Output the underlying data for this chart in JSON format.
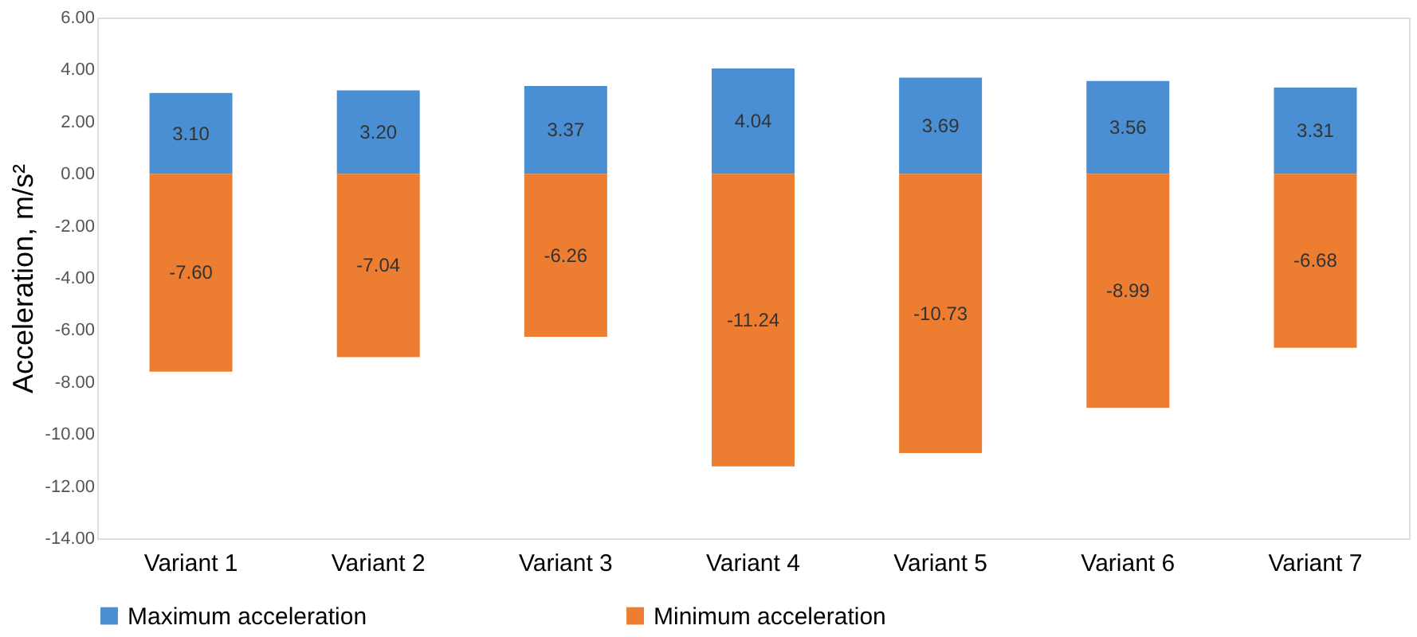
{
  "chart_data": {
    "type": "bar",
    "stacked": true,
    "ylabel": "Acceleration, m/s²",
    "categories": [
      "Variant 1",
      "Variant 2",
      "Variant 3",
      "Variant 4",
      "Variant 5",
      "Variant 6",
      "Variant 7"
    ],
    "series": [
      {
        "name": "Maximum acceleration",
        "color": "#4a8fd4",
        "values": [
          3.1,
          3.2,
          3.37,
          4.04,
          3.69,
          3.56,
          3.31
        ],
        "value_labels": [
          "3.10",
          "3.20",
          "3.37",
          "4.04",
          "3.69",
          "3.56",
          "3.31"
        ]
      },
      {
        "name": "Minimum acceleration",
        "color": "#ed7d31",
        "values": [
          -7.6,
          -7.04,
          -6.26,
          -11.24,
          -10.73,
          -8.99,
          -6.68
        ],
        "value_labels": [
          "-7.60",
          "-7.04",
          "-6.26",
          "-11.24",
          "-10.73",
          "-8.99",
          "-6.68"
        ]
      }
    ],
    "ylim": [
      -14,
      6
    ],
    "yticks": [
      {
        "value": -14,
        "label": "-14.00"
      },
      {
        "value": -12,
        "label": "-12.00"
      },
      {
        "value": -10,
        "label": "-10.00"
      },
      {
        "value": -8,
        "label": "-8.00"
      },
      {
        "value": -6,
        "label": "-6.00"
      },
      {
        "value": -4,
        "label": "-4.00"
      },
      {
        "value": -2,
        "label": "-2.00"
      },
      {
        "value": 0,
        "label": "0.00"
      },
      {
        "value": 2,
        "label": "2.00"
      },
      {
        "value": 4,
        "label": "4.00"
      },
      {
        "value": 6,
        "label": "6.00"
      }
    ],
    "grid": false,
    "legend": "bottom"
  }
}
